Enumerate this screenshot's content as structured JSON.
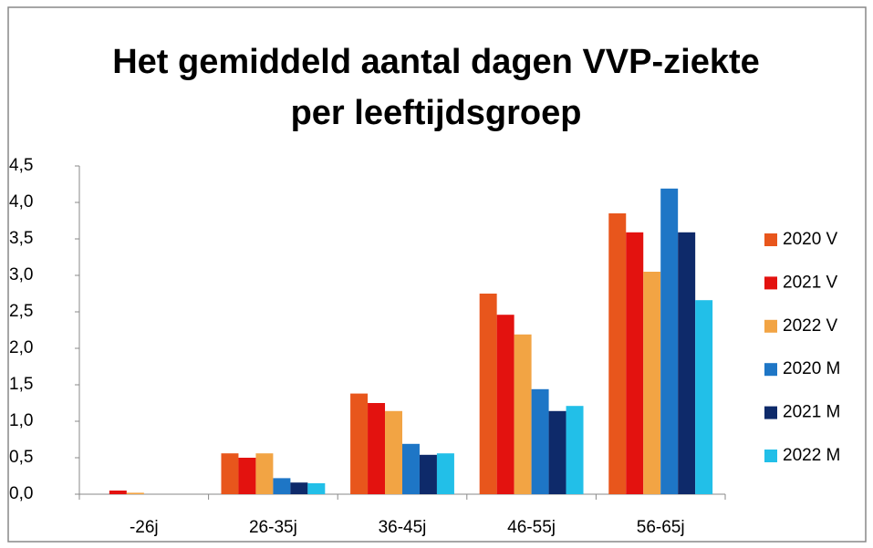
{
  "chart_data": {
    "type": "bar",
    "title": "Het gemiddeld aantal dagen VVP-ziekte per leeftijdsgroep",
    "categories": [
      "-26j",
      "26-35j",
      "36-45j",
      "46-55j",
      "56-65j"
    ],
    "series": [
      {
        "name": "2020 V",
        "color": "#e8561c",
        "values": [
          0,
          0.56,
          1.38,
          2.75,
          3.85
        ]
      },
      {
        "name": "2021 V",
        "color": "#e3120f",
        "values": [
          0.05,
          0.5,
          1.25,
          2.46,
          3.59
        ]
      },
      {
        "name": "2022 V",
        "color": "#f2a444",
        "values": [
          0.02,
          0.56,
          1.14,
          2.19,
          3.05
        ]
      },
      {
        "name": "2020 M",
        "color": "#1e76c6",
        "values": [
          0,
          0.22,
          0.69,
          1.44,
          4.19
        ]
      },
      {
        "name": "2021 M",
        "color": "#0e2a6a",
        "values": [
          0,
          0.16,
          0.54,
          1.14,
          3.59
        ]
      },
      {
        "name": "2022 M",
        "color": "#22bfe8",
        "values": [
          0,
          0.15,
          0.56,
          1.21,
          2.66
        ]
      }
    ],
    "ylim": [
      0,
      4.5
    ],
    "yticks": [
      {
        "value": 0,
        "label": "0,0"
      },
      {
        "value": 0.5,
        "label": "0,5"
      },
      {
        "value": 1,
        "label": "1,0"
      },
      {
        "value": 1.5,
        "label": "1,5"
      },
      {
        "value": 2,
        "label": "2,0"
      },
      {
        "value": 2.5,
        "label": "2,5"
      },
      {
        "value": 3,
        "label": "3,0"
      },
      {
        "value": 3.5,
        "label": "3,5"
      },
      {
        "value": 4,
        "label": "4,0"
      },
      {
        "value": 4.5,
        "label": "4,5"
      }
    ],
    "legend": "right"
  }
}
